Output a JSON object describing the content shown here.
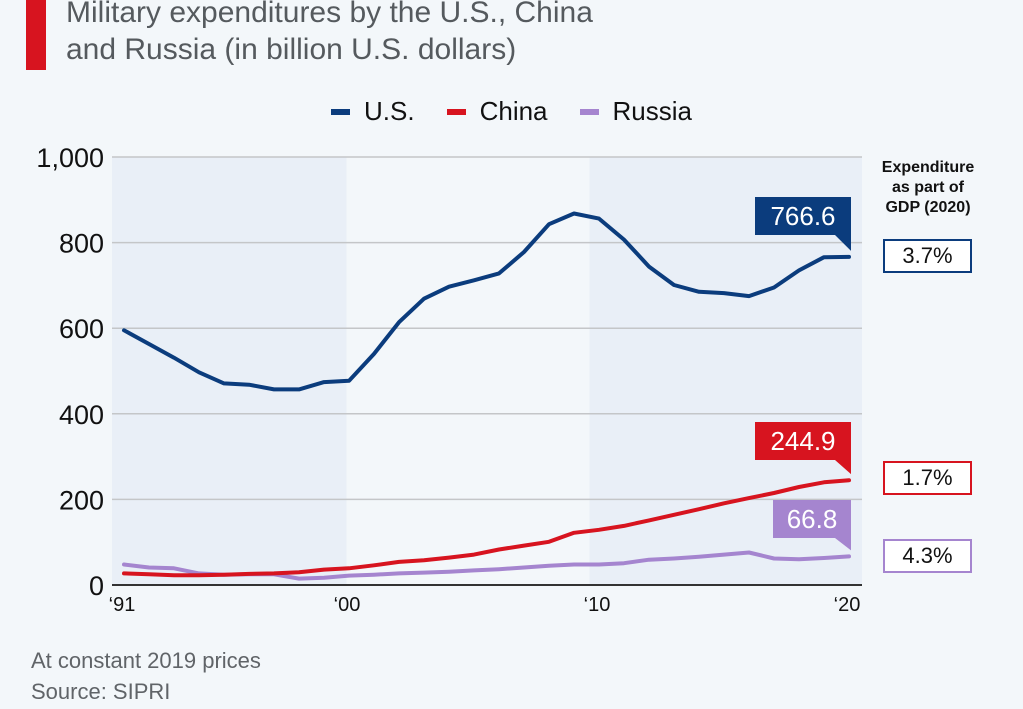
{
  "title": "Military expenditures by the U.S., China\nand Russia (in billion U.S. dollars)",
  "legend": [
    {
      "label": "U.S.",
      "color": "#0b3c7d"
    },
    {
      "label": "China",
      "color": "#d7141f"
    },
    {
      "label": "Russia",
      "color": "#a585cf"
    }
  ],
  "gdp": {
    "heading": "Expenditure as part of GDP (2020)",
    "heading_lines": [
      "Expenditure",
      "as part of",
      "GDP (2020)"
    ],
    "values": [
      {
        "country": "U.S.",
        "value": "3.7%",
        "color": "#0b3c7d"
      },
      {
        "country": "China",
        "value": "1.7%",
        "color": "#d7141f"
      },
      {
        "country": "Russia",
        "value": "4.3%",
        "color": "#a585cf"
      }
    ]
  },
  "footer": {
    "note": "At constant 2019 prices",
    "source": "Source: SIPRI"
  },
  "chart_data": {
    "type": "line",
    "title": "Military expenditures by the U.S., China and Russia (in billion U.S. dollars)",
    "xlabel": "",
    "ylabel": "",
    "x": [
      1991,
      1992,
      1993,
      1994,
      1995,
      1996,
      1997,
      1998,
      1999,
      2000,
      2001,
      2002,
      2003,
      2004,
      2005,
      2006,
      2007,
      2008,
      2009,
      2010,
      2011,
      2012,
      2013,
      2014,
      2015,
      2016,
      2017,
      2018,
      2019,
      2020
    ],
    "x_ticks": [
      {
        "value": 1991,
        "label": "‘91"
      },
      {
        "value": 2000,
        "label": "‘00"
      },
      {
        "value": 2010,
        "label": "‘10"
      },
      {
        "value": 2020,
        "label": "‘20"
      }
    ],
    "ylim": [
      0,
      1000
    ],
    "y_ticks": [
      {
        "value": 0,
        "label": "0"
      },
      {
        "value": 200,
        "label": "200"
      },
      {
        "value": 400,
        "label": "400"
      },
      {
        "value": 600,
        "label": "600"
      },
      {
        "value": 800,
        "label": "800"
      },
      {
        "value": 1000,
        "label": "1,000"
      }
    ],
    "grid": true,
    "legend_position": "top-center",
    "shaded_ranges": [
      [
        1991,
        2000
      ],
      [
        2010,
        2020
      ]
    ],
    "series": [
      {
        "name": "U.S.",
        "color": "#0b3c7d",
        "values": [
          595,
          563,
          531,
          497,
          471,
          468,
          457,
          457,
          474,
          477,
          540,
          614,
          669,
          697,
          712,
          728,
          778,
          843,
          868,
          856,
          807,
          744,
          701,
          685,
          682,
          675,
          695,
          735,
          766,
          766.6
        ],
        "end_label": "766.6"
      },
      {
        "name": "China",
        "color": "#d7141f",
        "values": [
          27,
          25,
          23,
          23,
          24,
          26,
          27,
          30,
          36,
          39,
          46,
          54,
          58,
          64,
          71,
          83,
          92,
          101,
          122,
          129,
          138,
          151,
          164,
          177,
          191,
          203,
          215,
          229,
          240,
          244.9
        ],
        "end_label": "244.9"
      },
      {
        "name": "Russia",
        "color": "#a585cf",
        "values": [
          48,
          41,
          39,
          27,
          24,
          25,
          25,
          15,
          17,
          22,
          24,
          27,
          29,
          31,
          34,
          37,
          41,
          45,
          48,
          48,
          51,
          59,
          62,
          66,
          71,
          76,
          62,
          60,
          63,
          66.8
        ],
        "end_label": "66.8"
      }
    ]
  }
}
